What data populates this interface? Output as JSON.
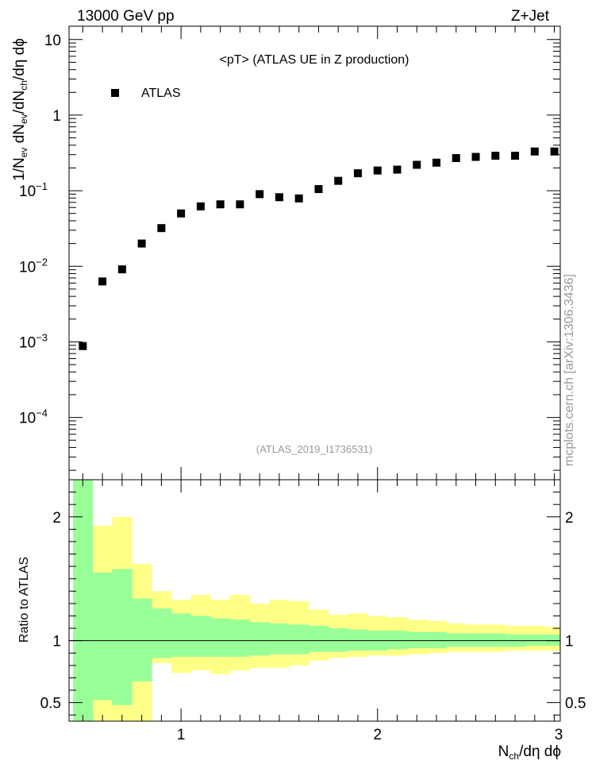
{
  "header": {
    "energy_label": "13000 GeV pp",
    "process_label": "Z+Jet"
  },
  "side_label": "mcplots.cern.ch [arXiv:1306.3436]",
  "chart_data": [
    {
      "type": "scatter",
      "title": "<pT> (ATLAS UE in Z production)",
      "watermark": "(ATLAS_2019_I1736531)",
      "ylabel": "1/N_ev dN_ev/dN_ch/dη dϕ",
      "xlabel": "N_ch/dη dϕ",
      "xlim": [
        0.43,
        2.93
      ],
      "ylim": [
        1.5e-05,
        15
      ],
      "y_scale": "log",
      "y_ticks": [
        {
          "value": 10,
          "label": "10"
        },
        {
          "value": 1,
          "label": "1"
        },
        {
          "value": 0.1,
          "label": "10",
          "exp": "−1"
        },
        {
          "value": 0.01,
          "label": "10",
          "exp": "−2"
        },
        {
          "value": 0.001,
          "label": "10",
          "exp": "−3"
        },
        {
          "value": 0.0001,
          "label": "10",
          "exp": "−4"
        }
      ],
      "legend": {
        "position": "top-left",
        "entries": [
          "ATLAS"
        ]
      },
      "series": [
        {
          "name": "ATLAS",
          "marker": "square",
          "color": "#000000",
          "x": [
            0.5,
            0.6,
            0.7,
            0.8,
            0.9,
            1.0,
            1.1,
            1.2,
            1.3,
            1.4,
            1.5,
            1.6,
            1.7,
            1.8,
            1.9,
            2.0,
            2.1,
            2.2,
            2.3,
            2.4,
            2.5,
            2.6,
            2.7,
            2.8,
            2.9
          ],
          "y": [
            0.00088,
            0.0063,
            0.0091,
            0.02,
            0.032,
            0.05,
            0.062,
            0.066,
            0.066,
            0.09,
            0.082,
            0.079,
            0.105,
            0.135,
            0.17,
            0.185,
            0.19,
            0.22,
            0.235,
            0.27,
            0.28,
            0.29,
            0.29,
            0.33,
            0.33
          ]
        }
      ]
    },
    {
      "type": "area",
      "ylabel": "Ratio to ATLAS",
      "xlim": [
        0.43,
        2.93
      ],
      "ylim": [
        0.35,
        2.3
      ],
      "x_ticks": [
        1,
        2,
        3
      ],
      "y_ticks": [
        0.5,
        1,
        2
      ],
      "reference_line": 1,
      "bins_x": [
        0.45,
        0.55,
        0.65,
        0.75,
        0.85,
        0.95,
        1.05,
        1.15,
        1.25,
        1.35,
        1.45,
        1.55,
        1.65,
        1.75,
        1.85,
        1.95,
        2.05,
        2.15,
        2.25,
        2.35,
        2.45,
        2.55,
        2.65,
        2.75,
        2.85,
        2.95
      ],
      "bands": [
        {
          "color": "#ffff88",
          "lower": [
            0.35,
            0.35,
            0.35,
            0.35,
            0.82,
            0.74,
            0.76,
            0.73,
            0.76,
            0.78,
            0.78,
            0.8,
            0.84,
            0.86,
            0.87,
            0.88,
            0.88,
            0.89,
            0.9,
            0.91,
            0.91,
            0.91,
            0.92,
            0.92,
            0.92
          ],
          "upper": [
            2.3,
            1.93,
            2.0,
            1.62,
            1.4,
            1.33,
            1.37,
            1.33,
            1.37,
            1.3,
            1.33,
            1.32,
            1.25,
            1.21,
            1.22,
            1.2,
            1.19,
            1.17,
            1.16,
            1.14,
            1.13,
            1.13,
            1.12,
            1.12,
            1.11
          ]
        },
        {
          "color": "#99ff99",
          "lower": [
            0.35,
            0.52,
            0.48,
            0.67,
            0.86,
            0.87,
            0.87,
            0.87,
            0.87,
            0.88,
            0.89,
            0.89,
            0.91,
            0.91,
            0.92,
            0.92,
            0.93,
            0.94,
            0.94,
            0.95,
            0.95,
            0.95,
            0.95,
            0.96,
            0.96
          ],
          "upper": [
            2.3,
            1.55,
            1.58,
            1.34,
            1.26,
            1.22,
            1.2,
            1.18,
            1.17,
            1.15,
            1.14,
            1.13,
            1.12,
            1.1,
            1.09,
            1.08,
            1.08,
            1.07,
            1.07,
            1.06,
            1.06,
            1.06,
            1.05,
            1.05,
            1.05
          ]
        }
      ]
    }
  ]
}
